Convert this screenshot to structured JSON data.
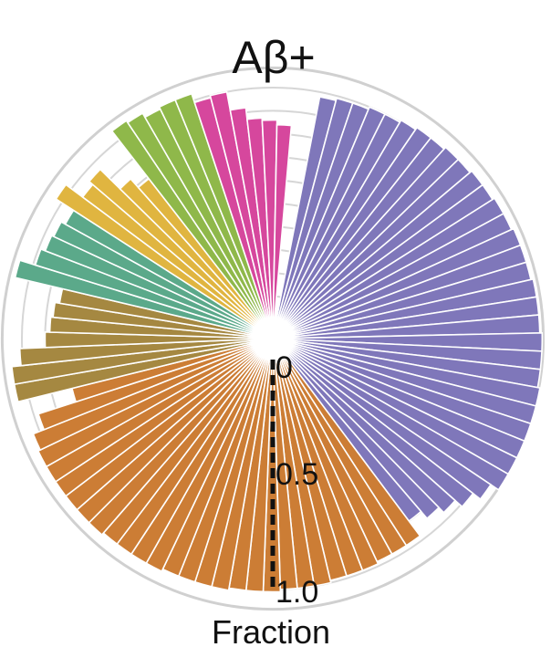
{
  "chart_data": {
    "type": "bar",
    "polar": true,
    "title": "Aβ+",
    "xlabel": "",
    "ylabel": "Fraction",
    "radial_ticks": [
      "0",
      "0.5",
      "1.0"
    ],
    "ylim": [
      0,
      1.0
    ],
    "grid": true,
    "legend": "none",
    "series_colors": {
      "purple": "#7f77ba",
      "orange": "#cc7d35",
      "olive": "#a58841",
      "teal": "#5ba98a",
      "yellow": "#e0b540",
      "green": "#8fb84a",
      "magenta": "#d6479d"
    },
    "segments": [
      {
        "color": "purple",
        "values": [
          0.98,
          0.99,
          0.99,
          1.0,
          1.0,
          1.01,
          1.02,
          1.02,
          1.03,
          1.03,
          1.04,
          1.04,
          1.05,
          1.05,
          1.06,
          1.06,
          1.06,
          1.07,
          1.07,
          1.07,
          1.08,
          1.08,
          1.08,
          1.09,
          1.09,
          1.09,
          1.09,
          1.09,
          1.09,
          1.05,
          1.01,
          0.97,
          0.94,
          0.9
        ]
      },
      {
        "color": "orange",
        "values": [
          0.98,
          0.98,
          0.98,
          0.99,
          0.99,
          0.99,
          1.0,
          1.0,
          1.0,
          1.01,
          1.01,
          1.01,
          1.02,
          1.02,
          1.02,
          1.02,
          1.03,
          1.03,
          1.03,
          1.03,
          1.04,
          1.04,
          1.04,
          1.04,
          1.04,
          1.04,
          1.03,
          0.98,
          0.81
        ]
      },
      {
        "color": "olive",
        "values": [
          1.05,
          1.05,
          1.01,
          0.9,
          0.88,
          0.87,
          0.85
        ]
      },
      {
        "color": "teal",
        "values": [
          1.06,
          0.99,
          0.97,
          0.96,
          0.94
        ]
      },
      {
        "color": "yellow",
        "values": [
          1.03,
          0.94,
          0.96,
          0.84,
          0.79
        ]
      },
      {
        "color": "green",
        "values": [
          1.05,
          1.04,
          1.02,
          1.03,
          1.03
        ]
      },
      {
        "color": "magenta",
        "values": [
          0.99,
          1.0,
          0.92,
          0.87,
          0.86,
          0.84
        ]
      }
    ]
  }
}
